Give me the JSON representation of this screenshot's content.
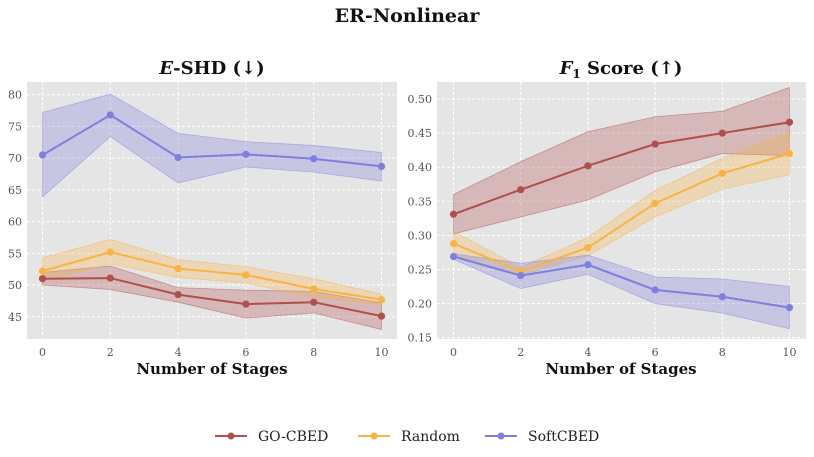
{
  "figure": {
    "title": "ER-Nonlinear"
  },
  "colors": {
    "GO-CBED": "#b0504c",
    "Random": "#f9b344",
    "SoftCBED": "#7f7fde",
    "panel_bg": "#e5e5e5",
    "grid": "#ffffff"
  },
  "legend": {
    "items": [
      "GO-CBED",
      "Random",
      "SoftCBED"
    ]
  },
  "chart_data": [
    {
      "type": "line",
      "title_symbol": "E",
      "title": "-SHD (↓)",
      "xlabel": "Number of Stages",
      "ylabel": "",
      "x": [
        0,
        2,
        4,
        6,
        8,
        10
      ],
      "xticks": [
        "0",
        "2",
        "4",
        "6",
        "8",
        "10"
      ],
      "ylim": [
        41.5,
        82
      ],
      "yticks": [
        "45",
        "50",
        "55",
        "60",
        "65",
        "70",
        "75",
        "80"
      ],
      "series": [
        {
          "name": "GO-CBED",
          "values": [
            51.0,
            51.1,
            48.5,
            47.0,
            47.3,
            45.1
          ],
          "lower": [
            50.0,
            49.3,
            47.3,
            44.8,
            45.6,
            43.0
          ],
          "upper": [
            52.0,
            53.0,
            49.6,
            49.2,
            49.0,
            47.2
          ]
        },
        {
          "name": "Random",
          "values": [
            52.2,
            55.2,
            52.6,
            51.6,
            49.4,
            47.7
          ],
          "lower": [
            50.8,
            53.3,
            51.2,
            50.3,
            48.1,
            46.9
          ],
          "upper": [
            54.3,
            57.2,
            54.0,
            52.9,
            51.0,
            48.6
          ]
        },
        {
          "name": "SoftCBED",
          "values": [
            70.5,
            76.8,
            70.1,
            70.6,
            69.9,
            68.7
          ],
          "lower": [
            63.9,
            73.4,
            66.1,
            68.6,
            67.8,
            66.4
          ],
          "upper": [
            77.2,
            80.1,
            73.9,
            72.6,
            72.0,
            70.9
          ]
        }
      ]
    },
    {
      "type": "line",
      "title_symbol": "F",
      "title_subscript": "1",
      "title": " Score (↑)",
      "xlabel": "Number of Stages",
      "ylabel": "",
      "x": [
        0,
        2,
        4,
        6,
        8,
        10
      ],
      "xticks": [
        "0",
        "2",
        "4",
        "6",
        "8",
        "10"
      ],
      "ylim": [
        0.148,
        0.525
      ],
      "yticks": [
        "0.15",
        "0.20",
        "0.25",
        "0.30",
        "0.35",
        "0.40",
        "0.45",
        "0.50"
      ],
      "series": [
        {
          "name": "GO-CBED",
          "values": [
            0.331,
            0.367,
            0.402,
            0.434,
            0.45,
            0.466
          ],
          "lower": [
            0.302,
            0.327,
            0.352,
            0.393,
            0.42,
            0.417
          ],
          "upper": [
            0.36,
            0.408,
            0.452,
            0.474,
            0.482,
            0.517
          ]
        },
        {
          "name": "Random",
          "values": [
            0.288,
            0.247,
            0.282,
            0.347,
            0.391,
            0.42
          ],
          "lower": [
            0.27,
            0.242,
            0.27,
            0.327,
            0.368,
            0.389
          ],
          "upper": [
            0.306,
            0.253,
            0.297,
            0.366,
            0.413,
            0.451
          ]
        },
        {
          "name": "SoftCBED",
          "values": [
            0.269,
            0.241,
            0.257,
            0.22,
            0.21,
            0.194
          ],
          "lower": [
            0.265,
            0.222,
            0.243,
            0.2,
            0.186,
            0.163
          ],
          "upper": [
            0.273,
            0.259,
            0.271,
            0.239,
            0.236,
            0.225
          ]
        }
      ]
    }
  ]
}
